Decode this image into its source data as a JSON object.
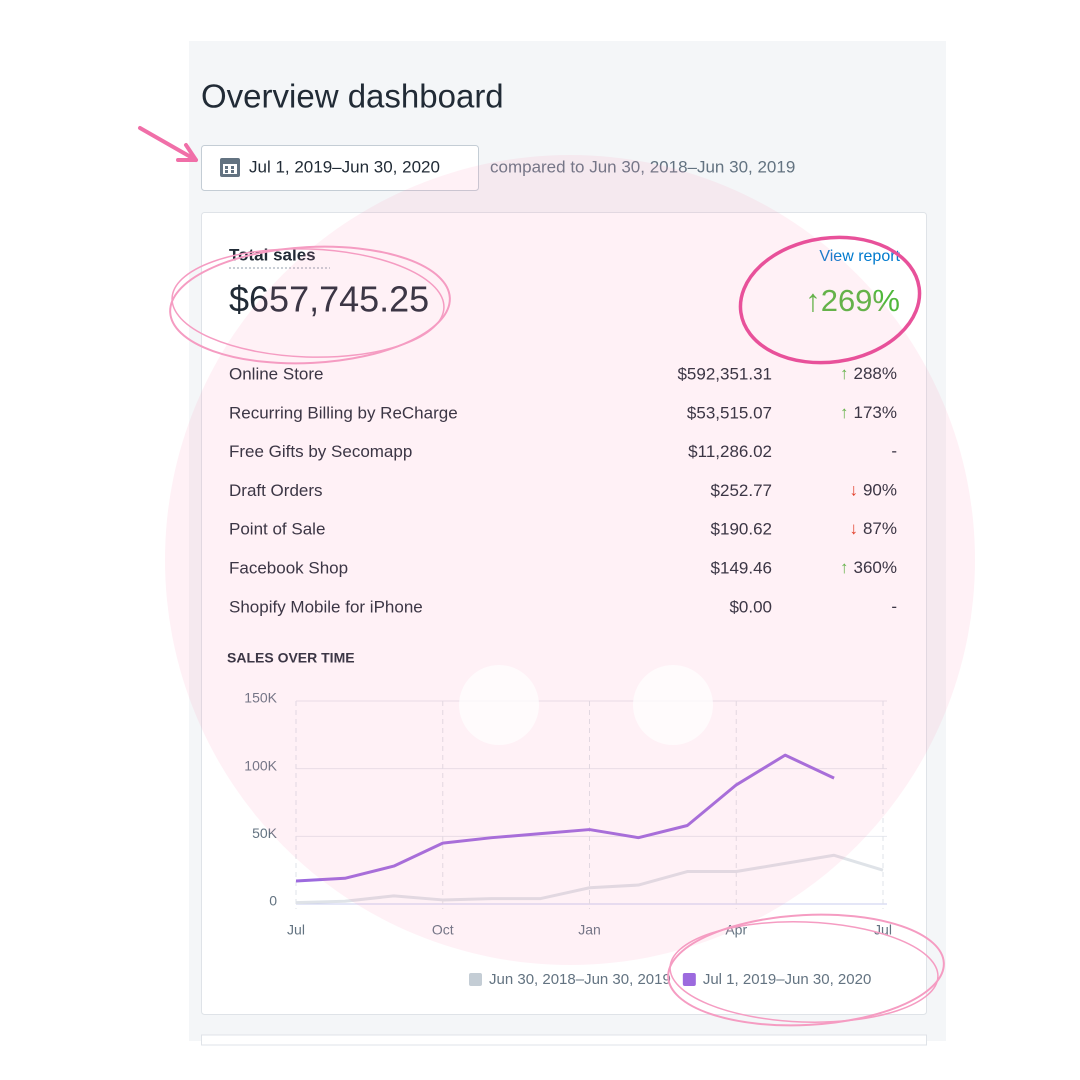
{
  "header": {
    "title": "Overview dashboard",
    "date_button": "Jul 1, 2019–Jun 30, 2020",
    "comparison": "compared to Jun 30, 2018–Jun 30, 2019"
  },
  "card": {
    "title": "Total sales",
    "link": "View report",
    "total": "$657,745.25",
    "total_arrow": "↑",
    "total_change": "269%",
    "rows": [
      {
        "name": "Online Store",
        "amount": "$592,351.31",
        "arrow": "↑",
        "change": "288%"
      },
      {
        "name": "Recurring Billing by ReCharge",
        "amount": "$53,515.07",
        "arrow": "↑",
        "change": "173%"
      },
      {
        "name": "Free Gifts by Secomapp",
        "amount": "$11,286.02",
        "change": "-"
      },
      {
        "name": "Draft Orders",
        "amount": "$252.77",
        "arrow": "↓",
        "change": "90%"
      },
      {
        "name": "Point of Sale",
        "amount": "$190.62",
        "arrow": "↓",
        "change": "87%"
      },
      {
        "name": "Facebook Shop",
        "amount": "$149.46",
        "arrow": "↑",
        "change": "360%"
      },
      {
        "name": "Shopify Mobile for iPhone",
        "amount": "$0.00",
        "change": "-"
      }
    ]
  },
  "chart_data": {
    "type": "line",
    "title": "SALES OVER TIME",
    "categories": [
      "Jul",
      null,
      null,
      "Oct",
      null,
      null,
      "Jan",
      null,
      null,
      "Apr",
      null,
      null,
      "Jul"
    ],
    "series": [
      {
        "name": "Jun 30, 2018–Jun 30, 2019",
        "color": "#c4cdd5",
        "line_color": "#dfe3e8",
        "values": [
          1000,
          2000,
          6000,
          3000,
          4000,
          4000,
          12000,
          14000,
          24000,
          24000,
          30000,
          36000,
          25000
        ]
      },
      {
        "name": "Jul 1, 2019–Jun 30, 2020",
        "color": "#9c6ade",
        "line_color": "#9c6ade",
        "values": [
          17000,
          19000,
          28000,
          45000,
          49000,
          52000,
          55000,
          49000,
          58000,
          88000,
          110000,
          93000,
          null
        ]
      }
    ],
    "ylim": [
      0,
      150000
    ],
    "yticks": [
      0,
      {
        "value": 50000,
        "label": "50K"
      },
      {
        "value": 100000,
        "label": "100K"
      },
      {
        "value": 150000,
        "label": "150K"
      }
    ],
    "grid": true
  }
}
